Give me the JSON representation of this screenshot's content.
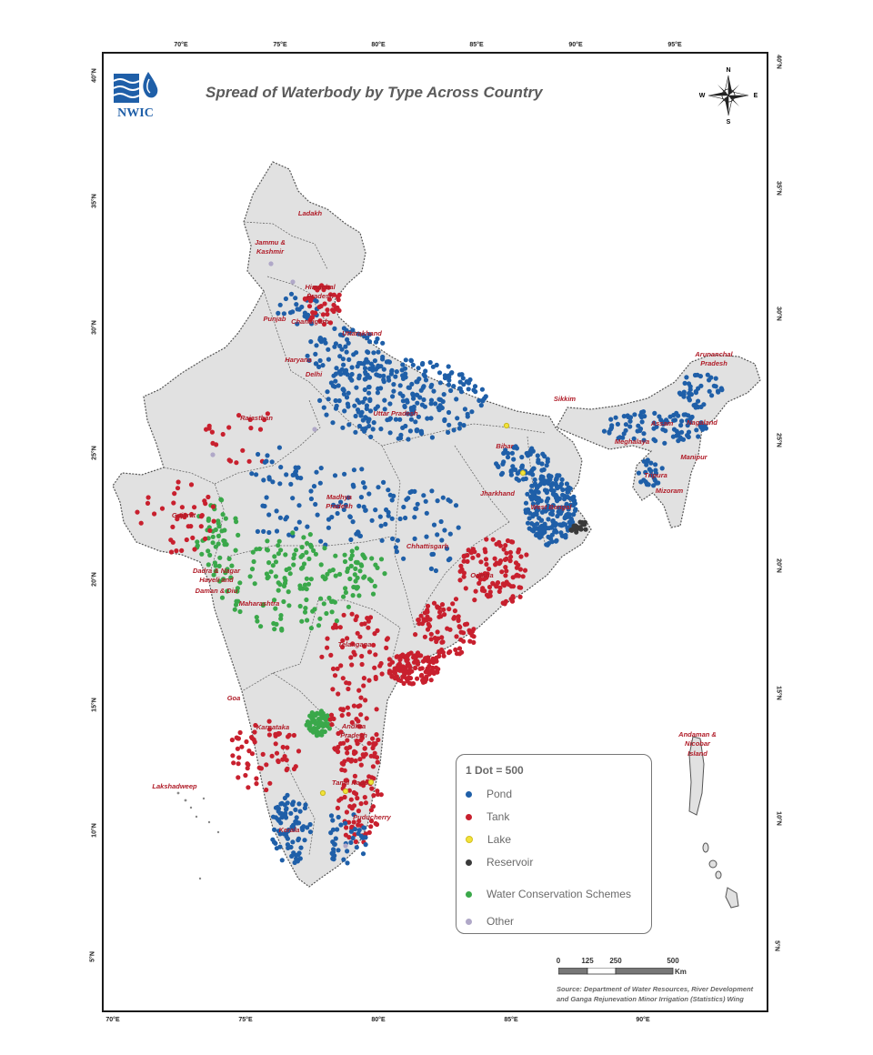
{
  "title": "Spread of Waterbody by Type Across Country",
  "logo_text": "NWIC",
  "compass": {
    "n": "N",
    "s": "S",
    "e": "E",
    "w": "W"
  },
  "axes": {
    "top": [
      "70°E",
      "75°E",
      "80°E",
      "85°E",
      "90°E",
      "95°E"
    ],
    "bottom": [
      "70°E",
      "75°E",
      "80°E",
      "85°E",
      "90°E"
    ],
    "left": [
      "40°N",
      "35°N",
      "30°N",
      "25°N",
      "20°N",
      "15°N",
      "10°N",
      "5°N"
    ],
    "right": [
      "40°N",
      "35°N",
      "30°N",
      "25°N",
      "20°N",
      "15°N",
      "10°N",
      "5°N"
    ]
  },
  "regions": {
    "ladakh": "Ladakh",
    "jk_1": "Jammu &",
    "jk_2": "Kashmir",
    "hp_1": "Himachal",
    "hp_2": "Pradesh",
    "chandigarh": "Chandigarh",
    "punjab": "Punjab",
    "uttarakhand": "Uttarakhand",
    "haryana": "Haryana",
    "delhi": "Delhi",
    "rajasthan": "Rajasthan",
    "up": "Uttar Pradesh",
    "bihar": "Bihar",
    "sikkim": "Sikkim",
    "arunachal_1": "Arunanchal",
    "arunachal_2": "Pradesh",
    "assam": "Assam",
    "nagaland": "Nagaland",
    "meghalaya": "Meghalaya",
    "manipur": "Manipur",
    "tripura": "Tripura",
    "mizoram": "Mizoram",
    "gujarat": "Gujarat",
    "mp_1": "Madhya",
    "mp_2": "Pradesh",
    "jharkhand": "Jharkhand",
    "wb": "West Bengal",
    "chhattisgarh": "Chhattisgarh",
    "odisha": "Odisha",
    "dnh_1": "Dadra & Nagar",
    "dnh_2": "Haveli and",
    "dnh_3": "Daman & Diu",
    "maharashtra": "Maharashtra",
    "telangana": "Telangana",
    "goa": "Goa",
    "karnataka": "Karnataka",
    "ap_1": "Andhra",
    "ap_2": "Pradesh",
    "andaman_1": "Andaman &",
    "andaman_2": "Nicobar",
    "andaman_3": "Island",
    "lakshadweep": "Lakshadweep",
    "tn": "Tamil Nadu",
    "puducherry": "Puducherry",
    "kerala": "Kerala"
  },
  "legend": {
    "title": "1 Dot = 500",
    "items": [
      {
        "label": "Pond",
        "color": "#1f5fa8"
      },
      {
        "label": "Tank",
        "color": "#c8202e"
      },
      {
        "label": "Lake",
        "color": "#f2e23a"
      },
      {
        "label": "Reservoir",
        "color": "#3a3a3a"
      },
      {
        "label": "Water Conservation Schemes",
        "color": "#3aa84a"
      },
      {
        "label": "Other",
        "color": "#b0a8c8"
      }
    ]
  },
  "scale": {
    "t0": "0",
    "t1": "125",
    "t2": "250",
    "t3": "500",
    "unit": "Km"
  },
  "source": {
    "line1": "Source: Department of Water Resources, River Development",
    "line2": "and Ganga Rejunevation Minor Irrigation (Statistics) Wing"
  }
}
